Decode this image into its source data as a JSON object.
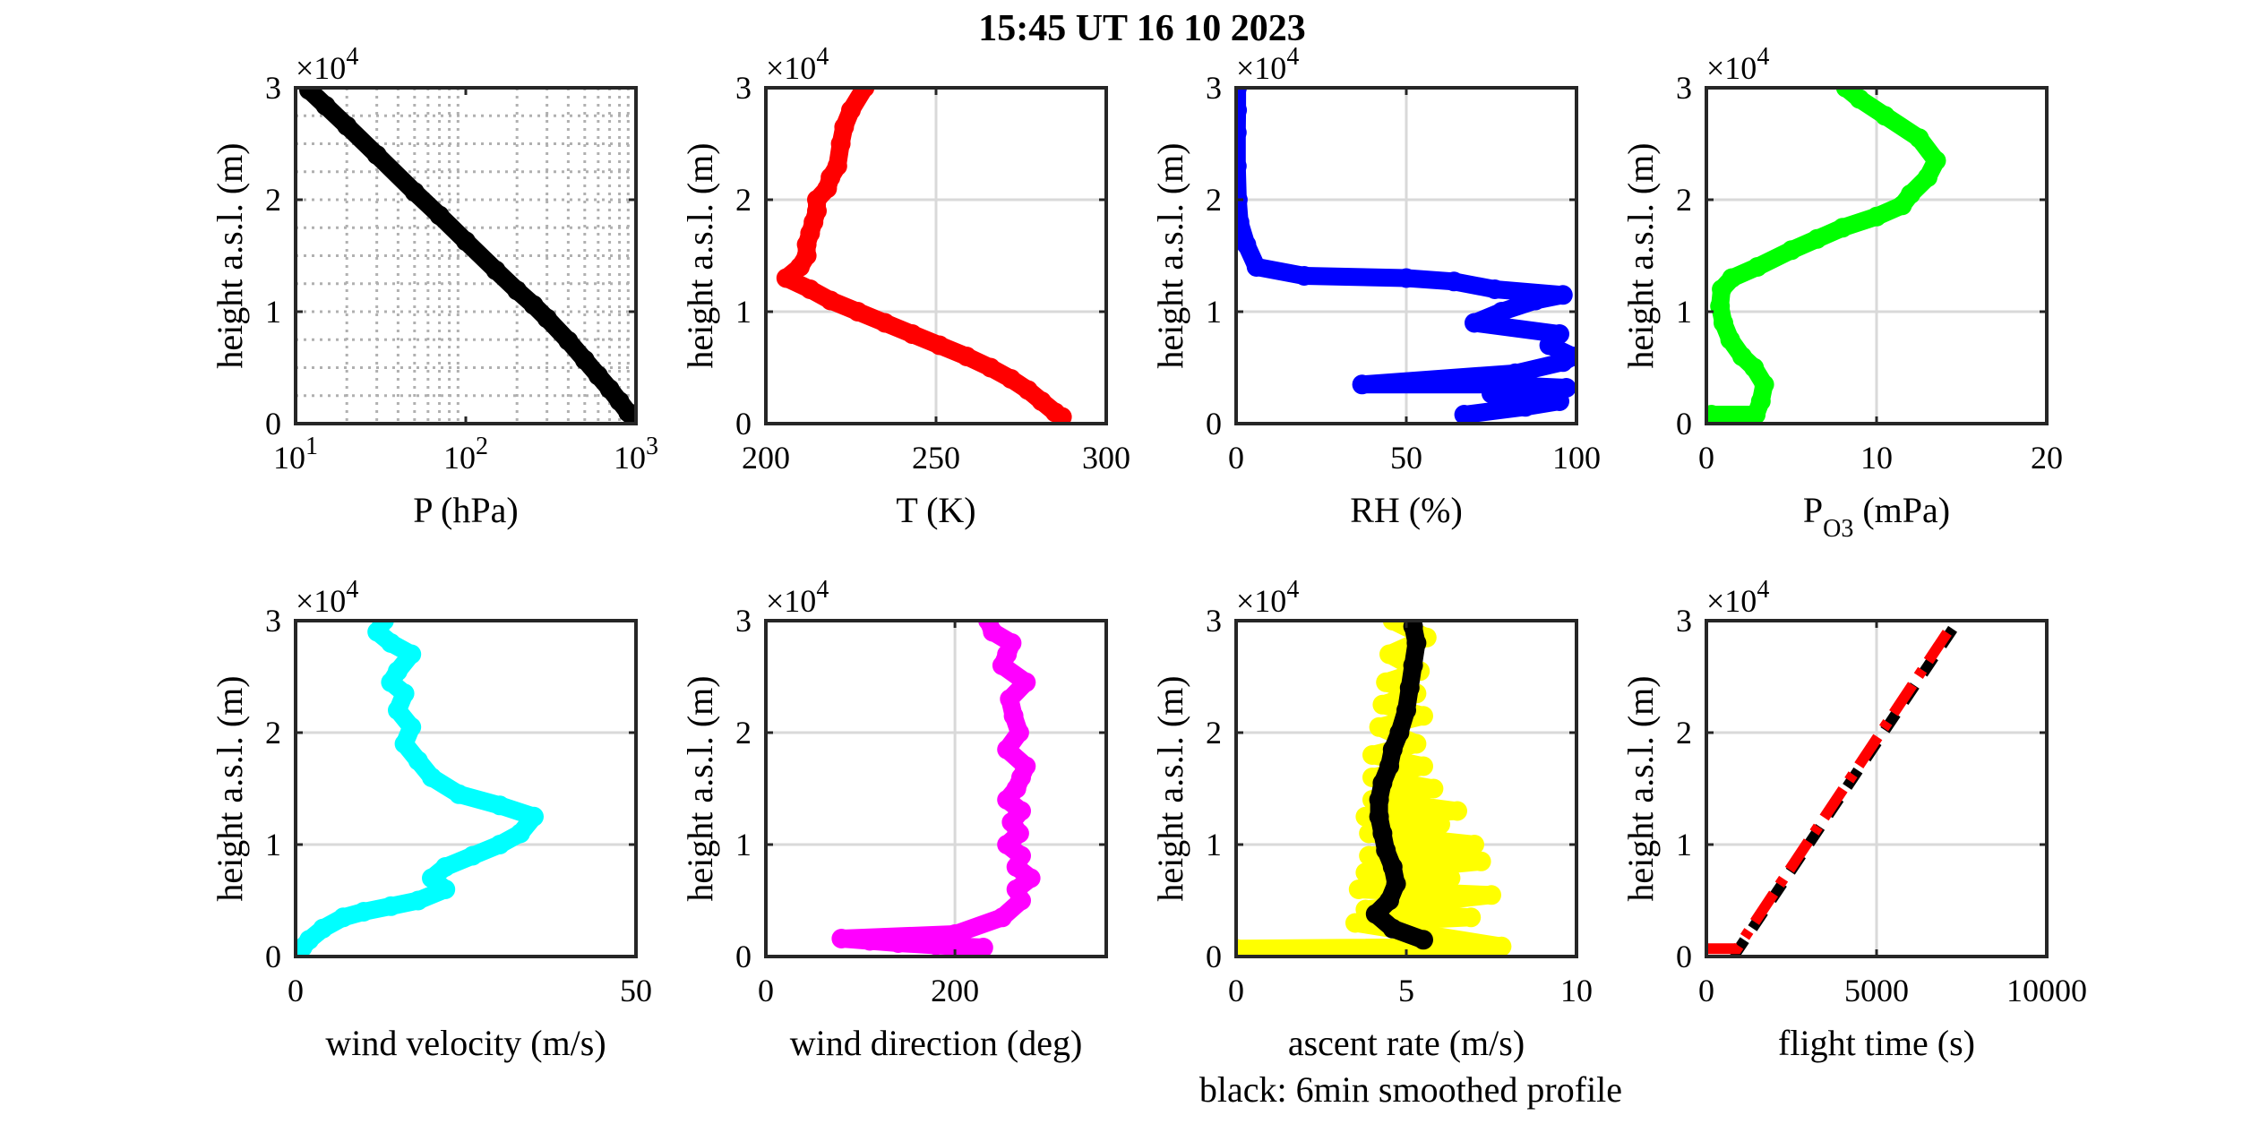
{
  "figure": {
    "title": "15:45 UT  16 10 2023",
    "note": "black: 6min smoothed profile"
  },
  "colors": {
    "temperature": "#ff0000",
    "humidity": "#0000ff",
    "ozone": "#00ff00",
    "wind_velocity": "#00ffff",
    "wind_direction": "#ff00ff",
    "ascent_rate_raw": "#ffff00",
    "ascent_rate_smoothed": "#000000",
    "pressure": "#000000",
    "flight_time_a": "#000000",
    "flight_time_b": "#ff0000",
    "grid": "#d9d9d9",
    "axes": "#262626"
  },
  "chart_data": [
    {
      "type": "scatter",
      "xlabel": "P (hPa)",
      "ylabel": "height a.s.l. (m)",
      "xscale": "log",
      "xlim": [
        10,
        1000
      ],
      "ylim": [
        0,
        30000
      ],
      "xticks": [
        "10^1",
        "10^2",
        "10^3"
      ],
      "yticks": [
        "0",
        "1",
        "2",
        "3"
      ],
      "y_exponent": "×10^4",
      "grid": "log-minor dotted",
      "series": [
        {
          "color": "#000000",
          "x": [
            1000,
            900,
            800,
            700,
            600,
            500,
            400,
            300,
            250,
            200,
            150,
            100,
            70,
            50,
            30,
            20,
            15,
            12
          ],
          "y": [
            100,
            1000,
            2000,
            3100,
            4300,
            5700,
            7400,
            9400,
            10600,
            11900,
            13700,
            16300,
            18600,
            20700,
            24000,
            26600,
            28400,
            29800
          ]
        }
      ]
    },
    {
      "type": "scatter",
      "xlabel": "T (K)",
      "ylabel": "height a.s.l. (m)",
      "xlim": [
        200,
        300
      ],
      "ylim": [
        0,
        30000
      ],
      "xticks": [
        "200",
        "250",
        "300"
      ],
      "yticks": [
        "0",
        "1",
        "2",
        "3"
      ],
      "y_exponent": "×10^4",
      "grid": "on",
      "series": [
        {
          "color": "#ff0000",
          "x": [
            287,
            285,
            281,
            277,
            272,
            266,
            259,
            251,
            243,
            235,
            227,
            219,
            213,
            206,
            210,
            212,
            212,
            213,
            214,
            215,
            215,
            218,
            219,
            221,
            222,
            223,
            225,
            229
          ],
          "y": [
            600,
            1000,
            2000,
            3000,
            4000,
            5000,
            6000,
            7000,
            8000,
            9000,
            10000,
            11000,
            12000,
            13000,
            14000,
            15000,
            16000,
            17000,
            18000,
            19000,
            20000,
            21000,
            22000,
            23000,
            25000,
            26500,
            28000,
            30000
          ]
        }
      ]
    },
    {
      "type": "scatter",
      "xlabel": "RH (%)",
      "ylabel": "height a.s.l. (m)",
      "xlim": [
        0,
        100
      ],
      "ylim": [
        0,
        30000
      ],
      "xticks": [
        "0",
        "50",
        "100"
      ],
      "yticks": [
        "0",
        "1",
        "2",
        "3"
      ],
      "y_exponent": "×10^4",
      "grid": "on",
      "series": [
        {
          "color": "#0000ff",
          "x": [
            67,
            85,
            95,
            75,
            97,
            75,
            37,
            82,
            96,
            99,
            92,
            95,
            70,
            78,
            88,
            96,
            76,
            64,
            50,
            20,
            6,
            3,
            1,
            0.5,
            0.2,
            0.2,
            0.3,
            0.3
          ],
          "y": [
            800,
            1500,
            2000,
            2700,
            3200,
            3500,
            3500,
            4500,
            5500,
            6000,
            7000,
            8000,
            9000,
            10000,
            11000,
            11500,
            12000,
            12700,
            13000,
            13200,
            14000,
            16000,
            18000,
            20000,
            23000,
            26000,
            28000,
            30000
          ]
        }
      ]
    },
    {
      "type": "scatter",
      "xlabel": "P_O3 (mPa)",
      "ylabel": "height a.s.l. (m)",
      "xlim": [
        0,
        20
      ],
      "ylim": [
        0,
        30000
      ],
      "xticks": [
        "0",
        "10",
        "20"
      ],
      "yticks": [
        "0",
        "1",
        "2",
        "3"
      ],
      "y_exponent": "×10^4",
      "grid": "on",
      "series": [
        {
          "color": "#00ff00",
          "x": [
            0.3,
            2.9,
            3.2,
            3.4,
            2.8,
            2.1,
            1.4,
            1.0,
            0.8,
            0.9,
            1.5,
            3.0,
            5.0,
            6.5,
            8.0,
            10.0,
            11.5,
            12.0,
            13.0,
            13.5,
            12.5,
            10.5,
            9.0,
            8.2
          ],
          "y": [
            800,
            800,
            2000,
            3500,
            5000,
            6000,
            7500,
            9000,
            10500,
            12000,
            13000,
            14000,
            15500,
            16500,
            17500,
            18500,
            19500,
            20500,
            22000,
            23500,
            25500,
            27500,
            29000,
            30000
          ]
        }
      ]
    },
    {
      "type": "scatter",
      "xlabel": "wind velocity (m/s)",
      "ylabel": "height a.s.l. (m)",
      "xlim": [
        0,
        50
      ],
      "ylim": [
        0,
        30000
      ],
      "xticks": [
        "0",
        "50"
      ],
      "yticks": [
        "0",
        "1",
        "2",
        "3"
      ],
      "y_exponent": "×10^4",
      "grid": "on",
      "series": [
        {
          "color": "#00ffff",
          "x": [
            1,
            2,
            4,
            7,
            10,
            14,
            18,
            22,
            20,
            22,
            26,
            30,
            33,
            35,
            30,
            24,
            20,
            18,
            16,
            17,
            15,
            16,
            14,
            15,
            17,
            14,
            12,
            13
          ],
          "y": [
            800,
            1500,
            2500,
            3500,
            4000,
            4500,
            5000,
            6000,
            7000,
            8000,
            9000,
            10000,
            11000,
            12500,
            13500,
            14500,
            16000,
            17500,
            19000,
            20500,
            22000,
            23500,
            24500,
            25500,
            27000,
            28000,
            29000,
            30000
          ]
        }
      ]
    },
    {
      "type": "scatter",
      "xlabel": "wind direction (deg)",
      "ylabel": "height a.s.l. (m)",
      "xlim": [
        0,
        360
      ],
      "ylim": [
        0,
        30000
      ],
      "xticks": [
        "0",
        "200"
      ],
      "yticks": [
        "0",
        "1",
        "2",
        "3"
      ],
      "y_exponent": "×10^4",
      "grid": "on",
      "series": [
        {
          "color": "#ff00ff",
          "x": [
            230,
            180,
            140,
            110,
            80,
            200,
            250,
            270,
            265,
            280,
            265,
            270,
            255,
            268,
            260,
            270,
            255,
            265,
            270,
            275,
            255,
            268,
            262,
            258,
            275,
            250,
            255,
            260,
            240,
            235
          ],
          "y": [
            800,
            1000,
            1200,
            1400,
            1600,
            2000,
            3500,
            5000,
            6000,
            7000,
            8000,
            9000,
            10000,
            11000,
            12000,
            13000,
            14000,
            15000,
            16000,
            17000,
            18500,
            20000,
            21500,
            23000,
            24500,
            26000,
            27000,
            28000,
            29000,
            30000
          ]
        }
      ]
    },
    {
      "type": "scatter",
      "xlabel": "ascent rate (m/s)",
      "ylabel": "height a.s.l. (m)",
      "xlim": [
        0,
        10
      ],
      "ylim": [
        0,
        30000
      ],
      "xticks": [
        "0",
        "5",
        "10"
      ],
      "yticks": [
        "0",
        "1",
        "2",
        "3"
      ],
      "y_exponent": "×10^4",
      "grid": "on",
      "series": [
        {
          "color": "#ffff00",
          "x": [
            0,
            7.8,
            3.5,
            6.9,
            3.8,
            7.5,
            3.6,
            6.3,
            3.8,
            7.2,
            3.9,
            7.0,
            3.9,
            6.0,
            3.8,
            6.5,
            4.0,
            5.8,
            4.0,
            5.5,
            4.0,
            5.3,
            4.2,
            5.5,
            4.3,
            5.3,
            4.4,
            5.4,
            4.5,
            5.6,
            4.6
          ],
          "y": [
            700,
            900,
            3000,
            3500,
            4200,
            5500,
            6000,
            7000,
            7500,
            8500,
            9000,
            10000,
            11000,
            11800,
            12500,
            13000,
            14000,
            15000,
            16000,
            17000,
            18000,
            19000,
            20500,
            21500,
            22500,
            23500,
            24500,
            25500,
            27000,
            28500,
            30000
          ]
        },
        {
          "color": "#000000",
          "x": [
            5.5,
            4.6,
            4.1,
            4.5,
            4.7,
            4.6,
            4.4,
            4.3,
            4.2,
            4.2,
            4.3,
            4.5,
            4.6,
            4.8,
            5.0,
            5.1,
            5.2,
            5.3,
            5.2
          ],
          "y": [
            1500,
            2500,
            3800,
            5000,
            6500,
            8000,
            9500,
            11000,
            12500,
            14000,
            15500,
            17000,
            18500,
            20000,
            22000,
            24000,
            26000,
            28000,
            29500
          ]
        }
      ]
    },
    {
      "type": "line",
      "xlabel": "flight time (s)",
      "ylabel": "height a.s.l. (m)",
      "xlim": [
        0,
        10000
      ],
      "ylim": [
        0,
        30000
      ],
      "xticks": [
        "0",
        "5000",
        "10000"
      ],
      "yticks": [
        "0",
        "1",
        "2",
        "3"
      ],
      "y_exponent": "×10^4",
      "grid": "on",
      "series": [
        {
          "color": "#000000",
          "style": "dashed",
          "x": [
            800,
            7400
          ],
          "y": [
            0,
            30000
          ]
        },
        {
          "color": "#ff0000",
          "style": "dash-dot",
          "x": [
            0,
            900,
            7200
          ],
          "y": [
            700,
            700,
            29500
          ]
        }
      ]
    }
  ]
}
